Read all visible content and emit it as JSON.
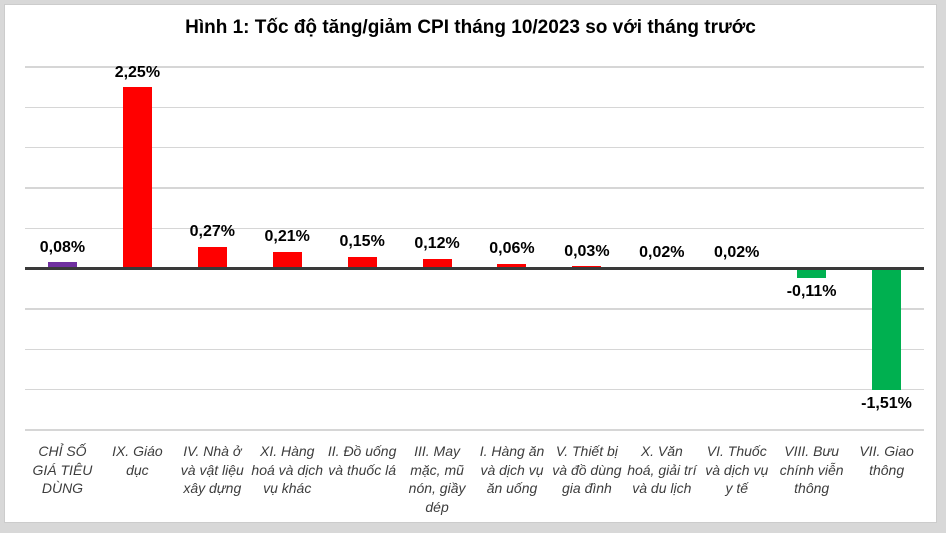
{
  "chart": {
    "title": "Hình 1: Tốc độ tăng/giảm CPI tháng 10/2023 so với tháng trước"
  },
  "colors": {
    "cpi_bar": "#7030A0",
    "positive_bar": "#FF0000",
    "negative_bar": "#00B050",
    "axis_line": "#3A3A3A",
    "gridline": "#D6D6D6",
    "page_background": "#D8D8D8",
    "chart_background": "#FFFFFF",
    "value_label_color": "#000000",
    "category_label_color": "#3D3D3D"
  },
  "chart_data": {
    "type": "bar",
    "title": "Hình 1: Tốc độ tăng/giảm CPI tháng 10/2023 so với tháng trước",
    "xlabel": "",
    "ylabel": "",
    "unit": "%",
    "grid": true,
    "legend": false,
    "ylim": [
      -2.0,
      2.5
    ],
    "gridline_step": 0.5,
    "categories": [
      "CHỈ SỐ GIÁ TIÊU DÙNG",
      "IX. Giáo dục",
      "IV. Nhà ở và vật liệu xây dựng",
      "XI. Hàng hoá và dịch vụ khác",
      "II. Đồ uống và thuốc lá",
      "III. May mặc, mũ nón, giầy dép",
      "I. Hàng ăn và dịch vụ ăn uống",
      "V. Thiết bị và đồ dùng gia đình",
      "X. Văn hoá, giải trí và du lịch",
      "VI. Thuốc và dịch vụ y tế",
      "VIII. Bưu chính viễn thông",
      "VII. Giao thông"
    ],
    "values": [
      0.08,
      2.25,
      0.27,
      0.21,
      0.15,
      0.12,
      0.06,
      0.03,
      0.02,
      0.02,
      -0.11,
      -1.51
    ],
    "value_labels": [
      "0,08%",
      "2,25%",
      "0,27%",
      "0,21%",
      "0,15%",
      "0,12%",
      "0,06%",
      "0,03%",
      "0,02%",
      "0,02%",
      "-0,11%",
      "-1,51%"
    ],
    "bar_colors": [
      "#7030A0",
      "#FF0000",
      "#FF0000",
      "#FF0000",
      "#FF0000",
      "#FF0000",
      "#FF0000",
      "#FF0000",
      "#FF0000",
      "#FF0000",
      "#00B050",
      "#00B050"
    ]
  }
}
